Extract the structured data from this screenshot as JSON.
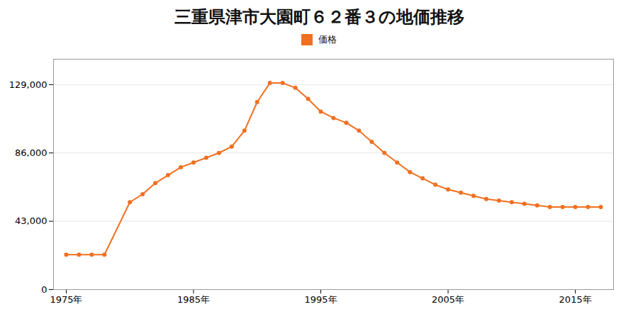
{
  "chart_data": {
    "type": "line",
    "title": "三重県津市大園町６２番３の地価推移",
    "x": [
      1975,
      1976,
      1977,
      1978,
      1980,
      1981,
      1982,
      1983,
      1984,
      1985,
      1986,
      1987,
      1988,
      1989,
      1990,
      1991,
      1992,
      1993,
      1994,
      1995,
      1996,
      1997,
      1998,
      1999,
      2000,
      2001,
      2002,
      2003,
      2004,
      2005,
      2006,
      2007,
      2008,
      2009,
      2010,
      2011,
      2012,
      2013,
      2014,
      2015,
      2016,
      2017
    ],
    "series": [
      {
        "name": "価格",
        "color": "#f07020",
        "marker": "circle",
        "values": [
          22000,
          22000,
          22000,
          22000,
          55000,
          60000,
          67000,
          72000,
          77000,
          80000,
          83000,
          86000,
          90000,
          100000,
          118000,
          130000,
          130000,
          127000,
          120000,
          112000,
          108000,
          105000,
          100000,
          93000,
          86000,
          80000,
          74000,
          70000,
          66000,
          63000,
          61000,
          59000,
          57000,
          56000,
          55000,
          54000,
          53000,
          52000,
          52000,
          52000,
          52000,
          52000
        ]
      }
    ],
    "xlim": [
      1974,
      2018
    ],
    "xticks": [
      {
        "value": 1975,
        "label": "1975年"
      },
      {
        "value": 1985,
        "label": "1985年"
      },
      {
        "value": 1995,
        "label": "1995年"
      },
      {
        "value": 2005,
        "label": "2005年"
      },
      {
        "value": 2015,
        "label": "2015年"
      }
    ],
    "ylim": [
      0,
      145000
    ],
    "yticks": [
      0,
      {
        "value": 43000,
        "label": "43,000"
      },
      {
        "value": 86000,
        "label": "86,000"
      },
      {
        "value": 129000,
        "label": "129,000"
      }
    ],
    "grid": true,
    "legend": "top"
  }
}
